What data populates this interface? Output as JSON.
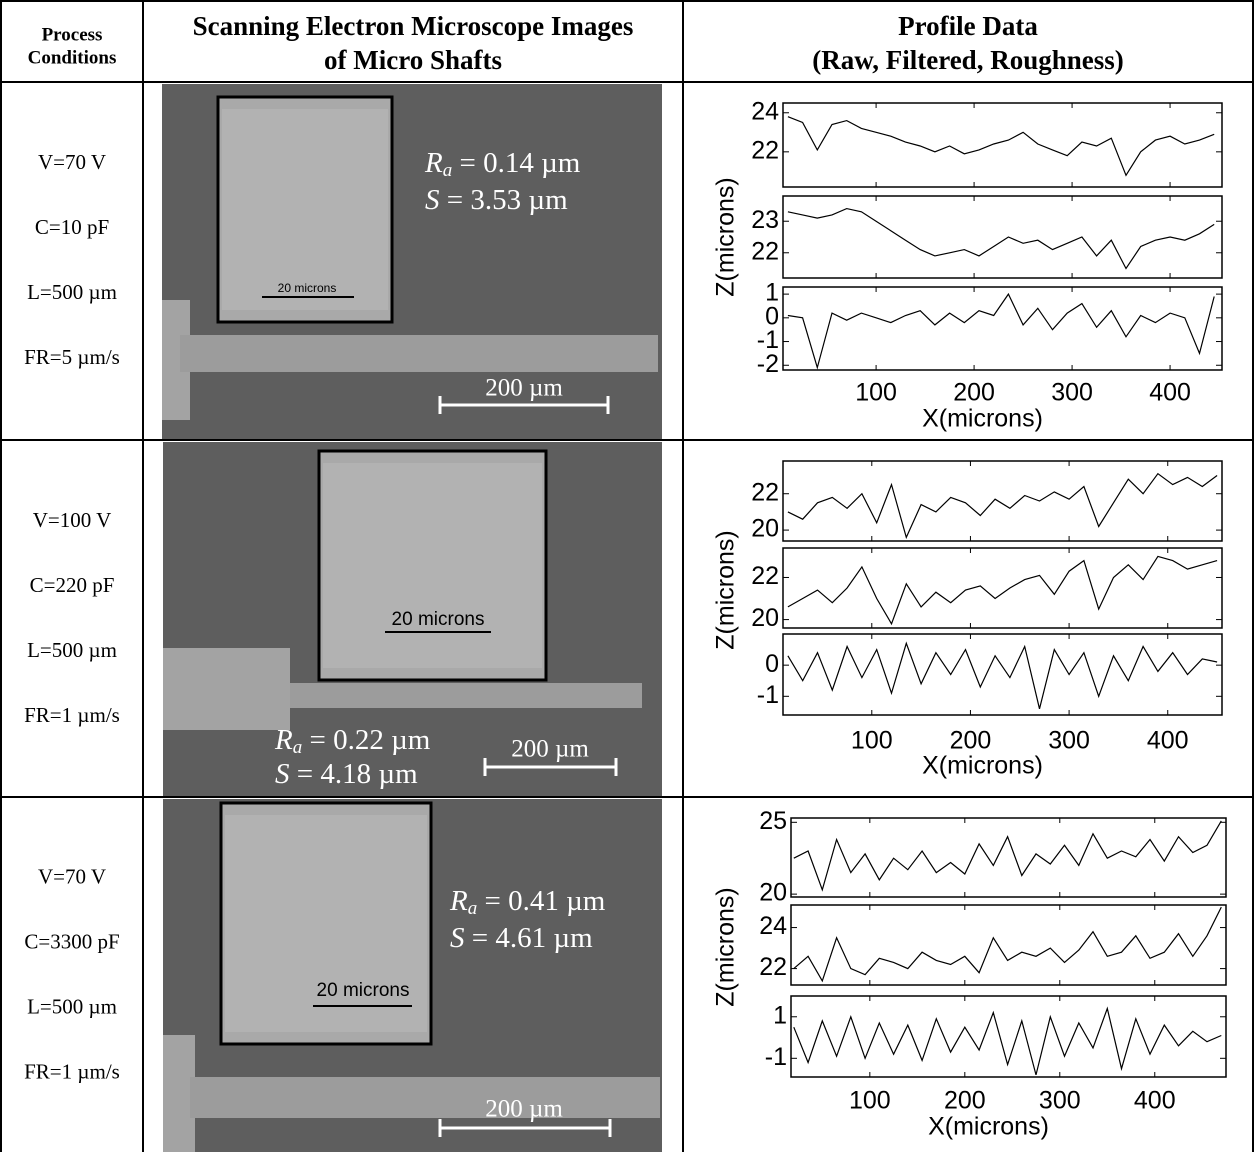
{
  "table": {
    "header": [
      [
        "Process",
        "Conditions"
      ],
      [
        "Scanning Electron Microscope Images",
        "of Micro Shafts"
      ],
      [
        "Profile Data",
        "(Raw, Filtered, Roughness)"
      ]
    ],
    "rows": [
      {
        "conditions": [
          "V=70 V",
          "C=10 pF",
          "L=500 µm",
          "FR=5 µm/s"
        ],
        "sem": {
          "inset_scale": "20 microns",
          "ra_symbol": "R",
          "ra_subscript": "a",
          "ra_value": " = 0.14 µm",
          "s_symbol": "S",
          "s_value": " = 3.53 µm",
          "scale_bar": "200 µm"
        }
      },
      {
        "conditions": [
          "V=100 V",
          "C=220 pF",
          "L=500 µm",
          "FR=1 µm/s"
        ],
        "sem": {
          "inset_scale": "20 microns",
          "ra_symbol": "R",
          "ra_subscript": "a",
          "ra_value": " = 0.22 µm",
          "s_symbol": "S",
          "s_value": " = 4.18 µm",
          "scale_bar": "200 µm"
        }
      },
      {
        "conditions": [
          "V=70 V",
          "C=3300 pF",
          "L=500 µm",
          "FR=1 µm/s"
        ],
        "sem": {
          "inset_scale": "20 microns",
          "ra_symbol": "R",
          "ra_subscript": "a",
          "ra_value": " = 0.41 µm",
          "s_symbol": "S",
          "s_value": " = 4.61 µm",
          "scale_bar": "200 µm"
        }
      }
    ]
  },
  "chart_data": [
    {
      "type": "line",
      "xlabel": "X(microns)",
      "ylabel": "Z(microns)",
      "xlim": [
        5,
        453
      ],
      "xticks": [
        100,
        200,
        300,
        400
      ],
      "x": [
        10,
        25,
        40,
        55,
        70,
        85,
        100,
        115,
        130,
        145,
        160,
        175,
        190,
        205,
        220,
        235,
        250,
        265,
        280,
        295,
        310,
        325,
        340,
        355,
        370,
        385,
        400,
        415,
        430,
        445
      ],
      "series": [
        {
          "color": "#000000",
          "ylim": [
            20.2,
            24.5
          ],
          "yticks": [
            22,
            24
          ],
          "values": [
            23.8,
            23.5,
            22.1,
            23.4,
            23.6,
            23.2,
            23.0,
            22.8,
            22.5,
            22.3,
            22.0,
            22.3,
            21.9,
            22.1,
            22.4,
            22.6,
            23.0,
            22.4,
            22.1,
            21.8,
            22.5,
            22.3,
            22.7,
            20.8,
            22.0,
            22.6,
            22.8,
            22.4,
            22.6,
            22.9
          ]
        },
        {
          "color": "#000000",
          "ylim": [
            21.2,
            23.8
          ],
          "yticks": [
            22,
            23
          ],
          "values": [
            23.3,
            23.2,
            23.1,
            23.2,
            23.4,
            23.3,
            23.0,
            22.7,
            22.4,
            22.1,
            21.9,
            22.0,
            22.1,
            21.9,
            22.2,
            22.5,
            22.3,
            22.4,
            22.1,
            22.3,
            22.5,
            21.9,
            22.4,
            21.5,
            22.2,
            22.4,
            22.5,
            22.4,
            22.6,
            22.9
          ]
        },
        {
          "color": "#000000",
          "ylim": [
            -2.2,
            1.3
          ],
          "yticks": [
            -2,
            -1,
            0,
            1
          ],
          "values": [
            0.1,
            0.0,
            -2.1,
            0.2,
            -0.1,
            0.2,
            0.0,
            -0.2,
            0.1,
            0.3,
            -0.3,
            0.2,
            -0.2,
            0.3,
            0.1,
            1.0,
            -0.3,
            0.4,
            -0.5,
            0.2,
            0.6,
            -0.4,
            0.3,
            -0.8,
            0.1,
            -0.2,
            0.2,
            0.0,
            -1.5,
            0.9
          ]
        }
      ]
    },
    {
      "type": "line",
      "xlabel": "X(microns)",
      "ylabel": "Z(microns)",
      "xlim": [
        10,
        455
      ],
      "xticks": [
        100,
        200,
        300,
        400
      ],
      "x": [
        15,
        30,
        45,
        60,
        75,
        90,
        105,
        120,
        135,
        150,
        165,
        180,
        195,
        210,
        225,
        240,
        255,
        270,
        285,
        300,
        315,
        330,
        345,
        360,
        375,
        390,
        405,
        420,
        435,
        450
      ],
      "series": [
        {
          "color": "#000000",
          "ylim": [
            19.4,
            23.8
          ],
          "yticks": [
            20,
            22
          ],
          "values": [
            21.0,
            20.6,
            21.5,
            21.8,
            21.2,
            22.0,
            20.4,
            22.5,
            19.6,
            21.4,
            21.0,
            21.8,
            21.5,
            20.8,
            21.7,
            21.2,
            21.9,
            21.6,
            22.1,
            21.7,
            22.4,
            20.2,
            21.5,
            22.8,
            22.0,
            23.1,
            22.5,
            22.9,
            22.4,
            23.0
          ]
        },
        {
          "color": "#000000",
          "ylim": [
            19.6,
            23.4
          ],
          "yticks": [
            20,
            22
          ],
          "values": [
            20.6,
            21.0,
            21.4,
            20.8,
            21.5,
            22.5,
            21.0,
            19.8,
            21.7,
            20.6,
            21.3,
            20.8,
            21.4,
            21.6,
            21.0,
            21.5,
            21.9,
            22.1,
            21.2,
            22.3,
            22.8,
            20.5,
            22.0,
            22.6,
            21.9,
            23.0,
            22.8,
            22.4,
            22.6,
            22.8
          ]
        },
        {
          "color": "#000000",
          "ylim": [
            -1.6,
            1.0
          ],
          "yticks": [
            -1,
            0
          ],
          "values": [
            0.3,
            -0.5,
            0.4,
            -0.8,
            0.6,
            -0.4,
            0.5,
            -0.9,
            0.7,
            -0.6,
            0.4,
            -0.3,
            0.5,
            -0.7,
            0.3,
            -0.4,
            0.6,
            -1.4,
            0.5,
            -0.3,
            0.4,
            -1.0,
            0.3,
            -0.5,
            0.6,
            -0.2,
            0.4,
            -0.3,
            0.2,
            0.1
          ]
        }
      ]
    },
    {
      "type": "line",
      "xlabel": "X(microns)",
      "ylabel": "Z(microns)",
      "xlim": [
        17,
        475
      ],
      "xticks": [
        100,
        200,
        300,
        400
      ],
      "x": [
        20,
        35,
        50,
        65,
        80,
        95,
        110,
        125,
        140,
        155,
        170,
        185,
        200,
        215,
        230,
        245,
        260,
        275,
        290,
        305,
        320,
        335,
        350,
        365,
        380,
        395,
        410,
        425,
        440,
        455,
        470
      ],
      "series": [
        {
          "color": "#000000",
          "ylim": [
            19.8,
            25.3
          ],
          "yticks": [
            20,
            25
          ],
          "values": [
            22.5,
            23.0,
            20.3,
            23.8,
            21.5,
            22.8,
            21.0,
            22.5,
            21.7,
            23.0,
            21.5,
            22.2,
            21.4,
            23.5,
            22.0,
            24.0,
            21.3,
            22.8,
            22.1,
            23.4,
            22.0,
            24.2,
            22.5,
            23.0,
            22.6,
            23.8,
            22.3,
            24.0,
            22.9,
            23.4,
            25.1
          ]
        },
        {
          "color": "#000000",
          "ylim": [
            21.2,
            25.1
          ],
          "yticks": [
            22,
            24
          ],
          "values": [
            22.0,
            22.6,
            21.4,
            23.5,
            22.0,
            21.7,
            22.5,
            22.3,
            22.0,
            22.8,
            22.4,
            22.2,
            22.6,
            21.8,
            23.5,
            22.4,
            22.8,
            22.6,
            23.0,
            22.3,
            22.9,
            23.8,
            22.6,
            22.8,
            23.6,
            22.5,
            22.8,
            23.7,
            22.6,
            23.6,
            25.0
          ]
        },
        {
          "color": "#000000",
          "ylim": [
            -1.9,
            2.0
          ],
          "yticks": [
            -1,
            1
          ],
          "values": [
            0.5,
            -1.2,
            0.8,
            -0.9,
            1.0,
            -1.0,
            0.7,
            -0.8,
            0.6,
            -1.1,
            0.9,
            -0.7,
            0.5,
            -0.6,
            1.2,
            -1.3,
            0.8,
            -1.8,
            1.0,
            -0.9,
            0.7,
            -0.5,
            1.4,
            -1.5,
            0.9,
            -0.8,
            0.6,
            -0.4,
            0.3,
            -0.2,
            0.1
          ]
        }
      ]
    }
  ]
}
